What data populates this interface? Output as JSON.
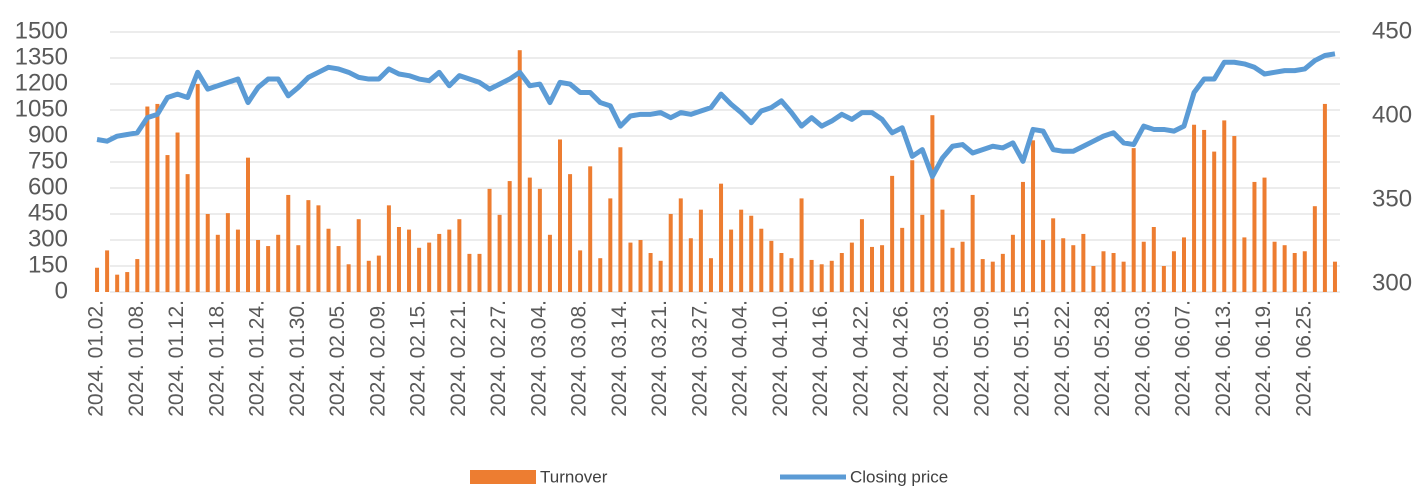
{
  "chart_data": {
    "type": "bar_line",
    "categories": [
      "2024. 01.02.",
      null,
      null,
      null,
      "2024. 01.08.",
      null,
      null,
      null,
      "2024. 01.12.",
      null,
      null,
      null,
      "2024. 01.18.",
      null,
      null,
      null,
      "2024. 01.24.",
      null,
      null,
      null,
      "2024. 01.30.",
      null,
      null,
      null,
      "2024. 02.05.",
      null,
      null,
      null,
      "2024. 02.09.",
      null,
      null,
      null,
      "2024. 02.15.",
      null,
      null,
      null,
      "2024. 02.21.",
      null,
      null,
      null,
      "2024. 02.27.",
      null,
      null,
      null,
      "2024. 03.04.",
      null,
      null,
      null,
      "2024. 03.08.",
      null,
      null,
      null,
      "2024. 03.14.",
      null,
      null,
      null,
      "2024. 03.21.",
      null,
      null,
      null,
      "2024. 03.27.",
      null,
      null,
      null,
      "2024. 04.04.",
      null,
      null,
      null,
      "2024. 04.10.",
      null,
      null,
      null,
      "2024. 04.16.",
      null,
      null,
      null,
      "2024. 04.22.",
      null,
      null,
      null,
      "2024. 04.26.",
      null,
      null,
      null,
      "2024. 05.03.",
      null,
      null,
      null,
      "2024. 05.09.",
      null,
      null,
      null,
      "2024. 05.15.",
      null,
      null,
      null,
      "2024. 05.22.",
      null,
      null,
      null,
      "2024. 05.28.",
      null,
      null,
      null,
      "2024. 06.03.",
      null,
      null,
      null,
      "2024. 06.07.",
      null,
      null,
      null,
      "2024. 06.13.",
      null,
      null,
      null,
      "2024. 06.19.",
      null,
      null,
      null,
      "2024. 06.25.",
      null,
      null,
      null
    ],
    "series": [
      {
        "name": "Turnover",
        "type": "bar",
        "color": "#ed7d31",
        "values": [
          140,
          240,
          100,
          115,
          190,
          1070,
          1085,
          790,
          920,
          680,
          1200,
          450,
          330,
          455,
          360,
          775,
          300,
          265,
          330,
          560,
          270,
          530,
          500,
          365,
          265,
          160,
          420,
          180,
          210,
          500,
          375,
          360,
          255,
          285,
          335,
          360,
          420,
          220,
          220,
          595,
          445,
          640,
          1395,
          660,
          595,
          330,
          880,
          680,
          240,
          725,
          195,
          540,
          835,
          285,
          300,
          225,
          180,
          450,
          540,
          310,
          475,
          195,
          625,
          360,
          475,
          440,
          365,
          295,
          225,
          195,
          540,
          185,
          160,
          180,
          225,
          285,
          420,
          260,
          270,
          670,
          370,
          760,
          445,
          1020,
          475,
          255,
          290,
          560,
          190,
          175,
          220,
          330,
          635,
          875,
          300,
          425,
          310,
          270,
          335,
          150,
          235,
          225,
          175,
          830,
          290,
          375,
          150,
          235,
          315,
          965,
          935,
          810,
          990,
          900,
          315,
          635,
          660,
          290,
          270,
          225,
          235,
          495,
          1085,
          175
        ]
      },
      {
        "name": "Closing price",
        "type": "line",
        "axis": "y2",
        "color": "#5b9bd5",
        "values": [
          386,
          385,
          388,
          389,
          390,
          399,
          401,
          411,
          413,
          411,
          426,
          416,
          418,
          420,
          422,
          408,
          417,
          422,
          422,
          412,
          417,
          423,
          426,
          429,
          428,
          426,
          423,
          422,
          422,
          428,
          425,
          424,
          422,
          421,
          426,
          418,
          424,
          422,
          420,
          416,
          419,
          422,
          426,
          418,
          419,
          408,
          420,
          419,
          414,
          414,
          408,
          406,
          394,
          400,
          401,
          401,
          402,
          399,
          402,
          401,
          403,
          405,
          413,
          407,
          402,
          396,
          403,
          405,
          409,
          402,
          394,
          399,
          394,
          397,
          401,
          398,
          402,
          402,
          398,
          390,
          393,
          376,
          380,
          364,
          375,
          382,
          383,
          378,
          380,
          382,
          381,
          384,
          373,
          392,
          391,
          380,
          379,
          379,
          382,
          385,
          388,
          390,
          384,
          383,
          394,
          392,
          392,
          391,
          394,
          414,
          422,
          422,
          432,
          432,
          431,
          429,
          425,
          426,
          427,
          427,
          428,
          433,
          436,
          437
        ]
      }
    ],
    "ylim": [
      0,
      1500
    ],
    "yticks": [
      0,
      150,
      300,
      450,
      600,
      750,
      900,
      1050,
      1200,
      1350,
      1500
    ],
    "y2lim": [
      300,
      450
    ],
    "y2ticks": [
      300,
      350,
      400,
      450
    ],
    "grid": true,
    "legend": "bottom"
  }
}
